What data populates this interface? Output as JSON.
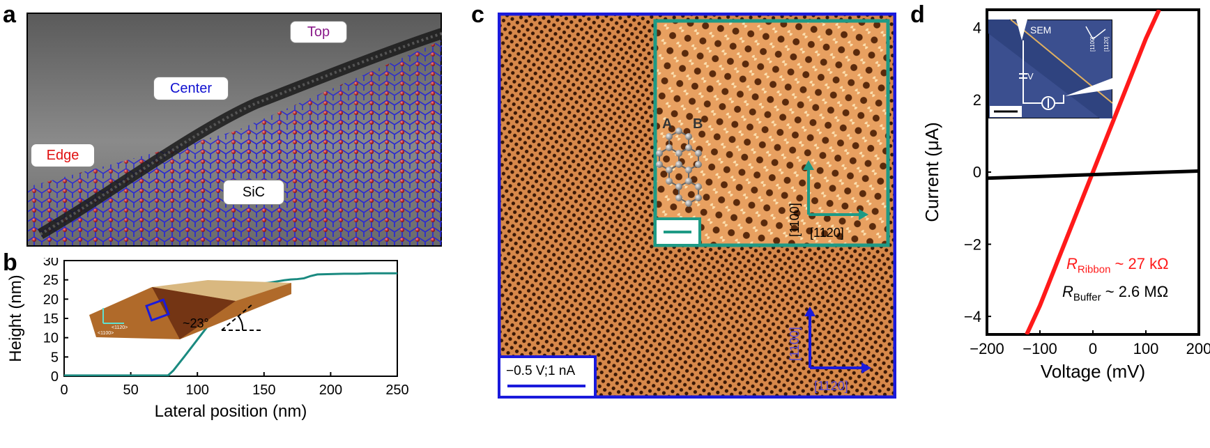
{
  "panel_letters": {
    "a": "a",
    "b": "b",
    "c": "c",
    "d": "d"
  },
  "panel_a": {
    "labels": {
      "top": "Top",
      "center": "Center",
      "edge": "Edge",
      "sic": "SiC"
    },
    "colors": {
      "top": "#8a1a8a",
      "center": "#1010d0",
      "edge": "#e01010",
      "sic": "#000000",
      "atom": "#c62f34",
      "bond": "#2a2ad0",
      "graphene": "#1a1a1a"
    }
  },
  "panel_b": {
    "chart_data": {
      "type": "line",
      "xlabel": "Lateral position (nm)",
      "ylabel": "Height (nm)",
      "xlim": [
        0,
        250
      ],
      "ylim": [
        0,
        30
      ],
      "xticks": [
        0,
        50,
        100,
        150,
        200,
        250
      ],
      "yticks": [
        0,
        5,
        10,
        15,
        20,
        25,
        30
      ],
      "series": [
        {
          "color": "#1a8a80",
          "x": [
            0,
            20,
            40,
            60,
            78,
            82,
            90,
            100,
            110,
            120,
            130,
            135,
            140,
            145,
            150,
            155,
            160,
            165,
            170,
            175,
            180,
            185,
            190,
            200,
            210,
            220,
            230,
            240,
            250
          ],
          "y": [
            0.2,
            0.2,
            0.2,
            0.2,
            0.2,
            1.5,
            5,
            9.5,
            14,
            18.5,
            22.5,
            23.7,
            23.9,
            24,
            24.1,
            24.3,
            24.6,
            24.9,
            25.1,
            25.2,
            25.4,
            26,
            26.4,
            26.5,
            26.6,
            26.6,
            26.7,
            26.7,
            26.7
          ]
        }
      ]
    },
    "inset": {
      "angle_label": "~23°",
      "axis_label_1": "<1100>",
      "axis_label_2": "<1120>"
    }
  },
  "panel_c": {
    "scale_label": "−0.5 V;1 nA",
    "axis_main": {
      "vertical": "[1100]",
      "horizontal": "[1120]"
    },
    "axis_inset": {
      "vertical": "[1100]",
      "horizontal": "[1120]"
    },
    "lattice_labels": {
      "a": "A",
      "b": "B"
    },
    "colors": {
      "border_main": "#1a1adc",
      "border_inset": "#1e9a85",
      "background": "#c8733a"
    }
  },
  "panel_d": {
    "chart_data": {
      "type": "line",
      "xlabel": "Voltage (mV)",
      "ylabel": "Current (μA)",
      "xlim": [
        -200,
        200
      ],
      "ylim": [
        -4.5,
        4.5
      ],
      "xticks": [
        -200,
        -100,
        0,
        100,
        200
      ],
      "yticks": [
        -4,
        -2,
        0,
        2,
        4
      ],
      "series": [
        {
          "color": "#ff1a1a",
          "x": [
            -125,
            -100,
            -50,
            0,
            50,
            100,
            125
          ],
          "y": [
            -4.5,
            -3.7,
            -1.85,
            0,
            1.85,
            3.7,
            4.5
          ]
        },
        {
          "color": "#000000",
          "x": [
            -200,
            -100,
            0,
            100,
            200
          ],
          "y": [
            -0.17,
            -0.12,
            -0.07,
            -0.02,
            0.03
          ]
        }
      ],
      "annotations": {
        "ribbon": {
          "prefix": "R",
          "sub": "Ribbon",
          "value": " ~ 27 kΩ"
        },
        "buffer": {
          "prefix": "R",
          "sub": "Buffer",
          "value": " ~ 2.6 MΩ"
        }
      }
    },
    "inset": {
      "sem_label": "SEM",
      "v_label": "V",
      "i_label": "I",
      "dir1": "[1100]",
      "dir2": "[1120]"
    }
  }
}
